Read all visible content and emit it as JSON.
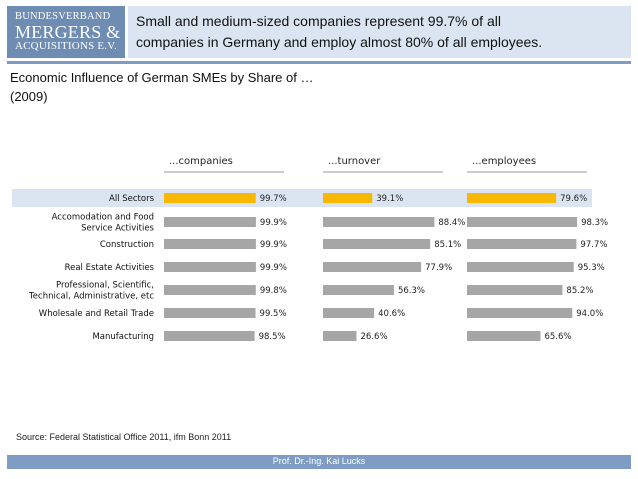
{
  "logo": {
    "line1": "BUNDESVERBAND",
    "line2": "MERGERS &",
    "line3": "ACQUISITIONS E.V."
  },
  "headline": {
    "line1": "Small and medium-sized companies represent 99.7% of all",
    "line2": "companies in Germany and employ almost 80% of all employees."
  },
  "subtitle": {
    "line1": "Economic Influence of German SMEs by Share of …",
    "line2": "(2009)"
  },
  "source": "Source: Federal Statistical Office 2011, ifm Bonn 2011",
  "footer": "Prof. Dr.-Ing. Kai Lucks",
  "colors": {
    "highlight": "#f6b800",
    "bar": "#a6a6a6",
    "accent": "#7f9cc4",
    "header_bg": "#dbe5f1",
    "row_band": "#dbe5f1"
  },
  "chart_data": {
    "type": "bar",
    "orientation": "horizontal",
    "unit": "%",
    "categories": [
      [
        "All Sectors"
      ],
      [
        "Accomodation and Food",
        "Service Activities"
      ],
      [
        "Construction"
      ],
      [
        "Real Estate Activities"
      ],
      [
        "Professional, Scientific,",
        "Technical, Administrative, etc"
      ],
      [
        "Wholesale and Retail Trade"
      ],
      [
        "Manufacturing"
      ]
    ],
    "highlight_index": 0,
    "series": [
      {
        "name": "...companies",
        "values": [
          99.7,
          99.9,
          99.9,
          99.9,
          99.8,
          99.5,
          98.5
        ],
        "labels": [
          "99.7%",
          "99.9%",
          "99.9%",
          "99.9%",
          "99.8%",
          "99.5%",
          "98.5%"
        ]
      },
      {
        "name": "...turnover",
        "values": [
          39.1,
          88.4,
          85.1,
          77.9,
          56.3,
          40.6,
          26.6
        ],
        "labels": [
          "39.1%",
          "88.4%",
          "85.1%",
          "77.9%",
          "56.3%",
          "40.6%",
          "26.6%"
        ]
      },
      {
        "name": "...employees",
        "values": [
          79.6,
          98.3,
          97.7,
          95.3,
          85.2,
          94.0,
          65.6
        ],
        "labels": [
          "79.6%",
          "98.3%",
          "97.7%",
          "95.3%",
          "85.2%",
          "94.0%",
          "65.6%"
        ]
      }
    ]
  }
}
